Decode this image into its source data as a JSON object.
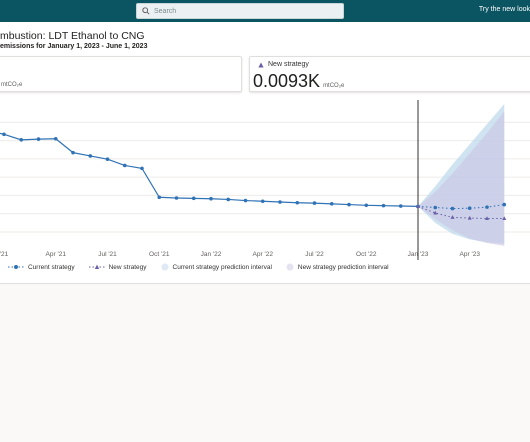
{
  "header": {
    "search_placeholder": "Search",
    "try_new": "Try the new look"
  },
  "page": {
    "title": "mbustion: LDT Ethanol to CNG",
    "subtitle": "emissions for January 1, 2023 - June 1, 2023"
  },
  "cards": {
    "left": {
      "unit": "mtCO₂e"
    },
    "right": {
      "label": "New strategy",
      "value": "0.0093K",
      "unit": "mtCO₂e"
    }
  },
  "legend": {
    "current": "Current strategy",
    "new": "New strategy",
    "current_pi": "Current strategy prediction interval",
    "new_pi": "New strategy prediction interval"
  },
  "colors": {
    "current": "#2f72b5",
    "new": "#6a5fa8",
    "current_pi": "#bfd9ec",
    "new_pi": "#c9c3e4",
    "divider": "#323130"
  },
  "chart_data": {
    "type": "line",
    "x_tick_labels": [
      "'21",
      "Apr '21",
      "Jul '21",
      "Oct '21",
      "Jan '22",
      "Apr '22",
      "Jul '22",
      "Oct '22",
      "Jan '23",
      "Apr '23"
    ],
    "x_tick_months": [
      0,
      3,
      6,
      9,
      12,
      15,
      18,
      21,
      24,
      27
    ],
    "grid": true,
    "legend_position": "bottom-left",
    "series": [
      {
        "name": "Current strategy",
        "x": [
          -1,
          0,
          1,
          2,
          3,
          4,
          5,
          6,
          7,
          8,
          9,
          10,
          11,
          12,
          13,
          14,
          15,
          16,
          17,
          18,
          19,
          20,
          21,
          22,
          23,
          24
        ],
        "y": [
          3.78,
          3.67,
          3.52,
          3.54,
          3.55,
          3.17,
          3.08,
          2.99,
          2.82,
          2.74,
          1.95,
          1.93,
          1.92,
          1.91,
          1.89,
          1.86,
          1.84,
          1.82,
          1.8,
          1.79,
          1.77,
          1.75,
          1.73,
          1.72,
          1.71,
          1.7
        ]
      },
      {
        "name": "Current strategy (forecast)",
        "x": [
          24,
          25,
          26,
          27,
          28,
          29
        ],
        "y": [
          1.7,
          1.67,
          1.64,
          1.65,
          1.68,
          1.75
        ]
      },
      {
        "name": "New strategy",
        "x": [
          24,
          25,
          26,
          27,
          28,
          29
        ],
        "y": [
          1.7,
          1.52,
          1.4,
          1.38,
          1.37,
          1.37
        ]
      }
    ],
    "bands": [
      {
        "name": "Current strategy prediction interval",
        "x": [
          24,
          25,
          26,
          27,
          28,
          29
        ],
        "low": [
          1.7,
          1.25,
          0.95,
          0.8,
          0.72,
          0.68
        ],
        "high": [
          1.7,
          2.25,
          2.85,
          3.4,
          3.95,
          4.5
        ]
      },
      {
        "name": "New strategy prediction interval",
        "x": [
          24,
          25,
          26,
          27,
          28,
          29
        ],
        "low": [
          1.7,
          1.35,
          1.05,
          0.82,
          0.7,
          0.62
        ],
        "high": [
          1.7,
          2.1,
          2.6,
          3.15,
          3.7,
          4.3
        ]
      }
    ],
    "today_line_month": 24
  }
}
